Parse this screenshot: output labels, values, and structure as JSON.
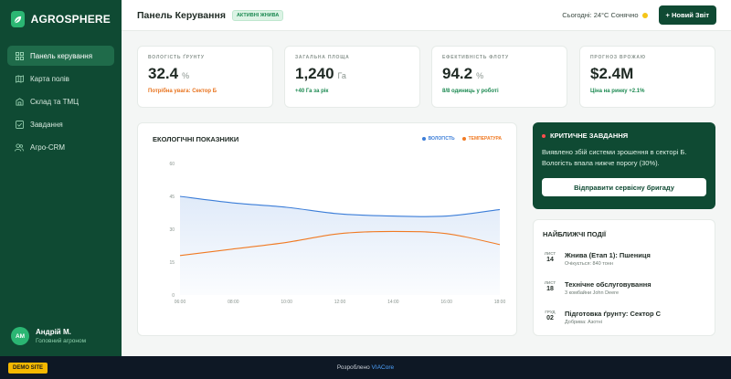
{
  "brand": {
    "name": "AGROSPHERE"
  },
  "sidebar": {
    "items": [
      {
        "label": "Панель керування",
        "icon": "dashboard-icon"
      },
      {
        "label": "Карта полів",
        "icon": "map-icon"
      },
      {
        "label": "Склад та ТМЦ",
        "icon": "warehouse-icon"
      },
      {
        "label": "Завдання",
        "icon": "checklist-icon"
      },
      {
        "label": "Агро-CRM",
        "icon": "people-icon"
      }
    ],
    "user": {
      "initials": "АМ",
      "name": "Андрій М.",
      "role": "Головний агроном"
    }
  },
  "header": {
    "title": "Панель Керування",
    "badge": "АКТИВНІ ЖНИВА",
    "weather": "Сьогодні: 24°C Сонячно",
    "new_report": "+ Новий Звіт"
  },
  "kpis": [
    {
      "label": "ВОЛОГІСТЬ ҐРУНТУ",
      "value": "32.4",
      "unit": "%",
      "note": "Потрібна увага: Сектор Б",
      "note_color": "#e8731e"
    },
    {
      "label": "ЗАГАЛЬНА ПЛОЩА",
      "value": "1,240",
      "unit": "Га",
      "note": "+40 Га за рік",
      "note_color": "#1d8a52"
    },
    {
      "label": "ЕФЕКТИВНІСТЬ ФЛОТУ",
      "value": "94.2",
      "unit": "%",
      "note": "8/8 одиниць у роботі",
      "note_color": "#1d8a52"
    },
    {
      "label": "ПРОГНОЗ ВРОЖАЮ",
      "value": "$2.4M",
      "unit": "",
      "note": "Ціна на ринку +2.1%",
      "note_color": "#1d8a52"
    }
  ],
  "chart_panel": {
    "title": "ЕКОЛОГІЧНІ ПОКАЗНИКИ"
  },
  "chart_data": {
    "type": "line",
    "title": "ЕКОЛОГІЧНІ ПОКАЗНИКИ",
    "x": [
      "06:00",
      "08:00",
      "10:00",
      "12:00",
      "14:00",
      "16:00",
      "18:00"
    ],
    "yticks": [
      0,
      15,
      30,
      45,
      60
    ],
    "ylim": [
      0,
      60
    ],
    "grid": false,
    "legend": "top-right",
    "series": [
      {
        "name": "ВОЛОГІСТЬ",
        "color": "#3b7dd8",
        "values": [
          45,
          42,
          40,
          37,
          36,
          36,
          39
        ]
      },
      {
        "name": "ТЕМПЕРАТУРА",
        "color": "#f07a23",
        "values": [
          18,
          21,
          24,
          28,
          29,
          28,
          23
        ]
      }
    ]
  },
  "critical": {
    "title": "КРИТИЧНЕ ЗАВДАННЯ",
    "text": "Виявлено збій системи зрошення в секторі Б. Вологість впала нижче порогу (30%).",
    "button": "Відправити сервісну бригаду"
  },
  "events": {
    "title": "НАЙБЛИЖЧІ ПОДІЇ",
    "items": [
      {
        "month": "ЛИСТ",
        "day": "14",
        "title": "Жнива (Етап 1): Пшениця",
        "subtitle": "Очікується: 840 тонн"
      },
      {
        "month": "ЛИСТ",
        "day": "18",
        "title": "Технічне обслуговування",
        "subtitle": "3 комбайни John Deere"
      },
      {
        "month": "ГРУД",
        "day": "02",
        "title": "Підготовка ґрунту: Сектор С",
        "subtitle": "Добрива: Азотні"
      }
    ]
  },
  "footer": {
    "demo": "DEMO SITE",
    "built_prefix": "Розроблено",
    "built_link": "VIACore"
  }
}
